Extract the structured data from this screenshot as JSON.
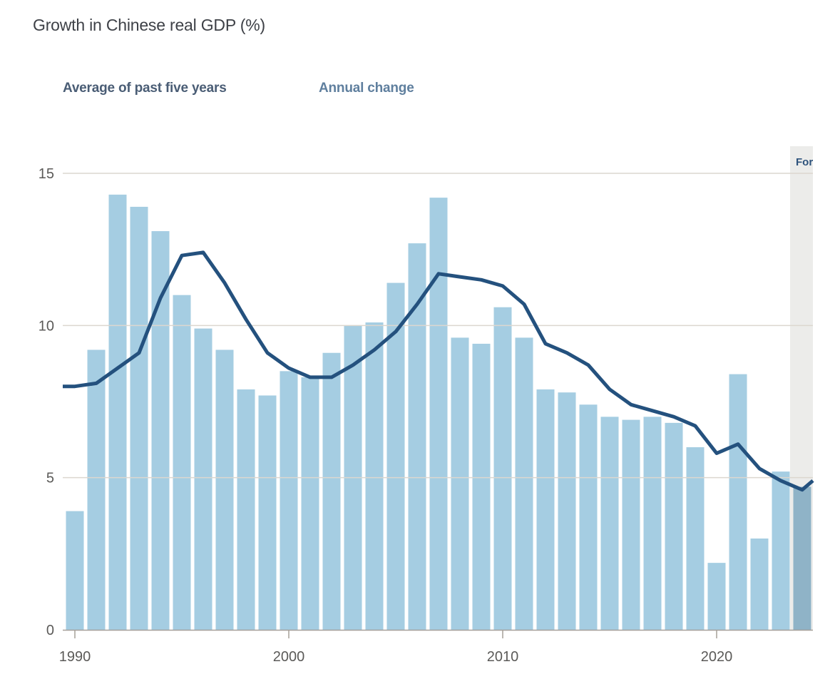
{
  "title": "Growth in Chinese real GDP (%)",
  "legend": {
    "average_label": "Average of past five years",
    "annual_label": "Annual change"
  },
  "colors": {
    "bar": "#a5cde2",
    "bar_forecast": "#8fb3c7",
    "line": "#24517e",
    "gridline": "#dcd7cf",
    "baseline": "#a6a099",
    "band": "#ececea",
    "forecast_text": "#2e537c",
    "axis_text": "#5b5a58",
    "legend_average_text": "#4a5d75",
    "legend_annual_text": "#5f7f9e"
  },
  "chart_data": {
    "type": "bar",
    "title": "Growth in Chinese real GDP (%)",
    "xlabel": "",
    "ylabel": "",
    "ylim": [
      0,
      15
    ],
    "yticks": [
      0,
      5,
      10,
      15
    ],
    "xtick_years": [
      1990,
      2000,
      2010,
      2020
    ],
    "xtick_labels": [
      "1990",
      "2000",
      "2010",
      "2020"
    ],
    "grid": "horizontal",
    "legend_position": "top",
    "categories": [
      1990,
      1991,
      1992,
      1993,
      1994,
      1995,
      1996,
      1997,
      1998,
      1999,
      2000,
      2001,
      2002,
      2003,
      2004,
      2005,
      2006,
      2007,
      2008,
      2009,
      2010,
      2011,
      2012,
      2013,
      2014,
      2015,
      2016,
      2017,
      2018,
      2019,
      2020,
      2021,
      2022,
      2023,
      2024
    ],
    "series": [
      {
        "name": "Annual change",
        "type": "bar",
        "values": [
          3.9,
          9.2,
          14.3,
          13.9,
          13.1,
          11.0,
          9.9,
          9.2,
          7.9,
          7.7,
          8.5,
          8.3,
          9.1,
          10.0,
          10.1,
          11.4,
          12.7,
          14.2,
          9.6,
          9.4,
          10.6,
          9.6,
          7.9,
          7.8,
          7.4,
          7.0,
          6.9,
          7.0,
          6.8,
          6.0,
          2.2,
          8.4,
          3.0,
          5.2,
          4.7
        ]
      },
      {
        "name": "Average of past five years",
        "type": "line",
        "values": [
          8.0,
          8.1,
          8.6,
          9.1,
          10.9,
          12.3,
          12.4,
          11.4,
          10.2,
          9.1,
          8.6,
          8.3,
          8.3,
          8.7,
          9.2,
          9.8,
          10.7,
          11.7,
          11.6,
          11.5,
          11.3,
          10.7,
          9.4,
          9.1,
          8.7,
          7.9,
          7.4,
          7.2,
          7.0,
          6.7,
          5.8,
          6.1,
          5.3,
          4.9,
          4.6
        ],
        "edge_value": 4.9
      }
    ],
    "forecast": {
      "start_year": 2024,
      "label": "Forecast"
    }
  }
}
